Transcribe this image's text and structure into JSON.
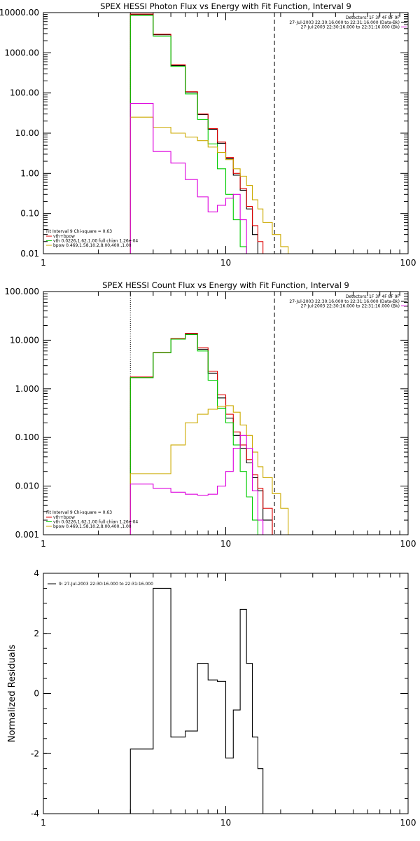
{
  "colors": {
    "data": "#000000",
    "total": "#dd0000",
    "vth": "#00cc00",
    "bpow": "#ccaa00",
    "bk": "#dd00dd",
    "vline": "#000000"
  },
  "chart_data": [
    {
      "type": "line",
      "title": "SPEX HESSI Photon Flux vs Energy with Fit Function, Interval 9",
      "xscale": "log",
      "yscale": "log",
      "xlim": [
        1,
        100
      ],
      "ylim": [
        0.01,
        10000
      ],
      "x_ticks": [
        1,
        10,
        100
      ],
      "x_tick_labels": [
        "1",
        "10",
        "100"
      ],
      "y_ticks": [
        0.01,
        0.1,
        1,
        10,
        100,
        1000,
        10000
      ],
      "y_tick_labels": [
        "0.01",
        "0.10",
        "1.00",
        "10.00",
        "100.00",
        "1000.00",
        "10000.00"
      ],
      "detectors_label": "Detectors: 1F 3F 4F 8F 9F",
      "time_lines": [
        {
          "text": "27-Jul-2003 22:30:16.000 to 22:31:16.000 (Data-Bk)",
          "color": "data"
        },
        {
          "text": "27-Jul-2003 22:30:16.000 to 22:31:16.000 (Bk)",
          "color": "bk"
        }
      ],
      "fit_header": "Fit Interval 9   Chi-square = 0.63",
      "fit_legend": [
        {
          "text": "vth+bpow",
          "color": "total"
        },
        {
          "text": "vth 0.0226,1.62,1.00  full chian 1.26e-04",
          "color": "vth"
        },
        {
          "text": "bpow 0.469,1.58,10.2,8.00,400.,1.00",
          "color": "bpow"
        }
      ],
      "dotted_line_x": 3.0,
      "dashed_line_x": 18.5,
      "edges": [
        3.0,
        4.0,
        5.0,
        6.0,
        7.0,
        8.0,
        9.0,
        10.0,
        11.0,
        12.0,
        13.0,
        14.0,
        15.0,
        16.0,
        18.0,
        20.0,
        22.0
      ],
      "series": [
        {
          "color": "data",
          "values": [
            9000,
            2800,
            480,
            105,
            29,
            12.5,
            5.6,
            2.3,
            0.9,
            0.38,
            0.13,
            0.03,
            0.01,
            null,
            null,
            null
          ]
        },
        {
          "color": "total",
          "values": [
            9200,
            2900,
            500,
            108,
            30,
            13,
            6,
            2.5,
            1.0,
            0.42,
            0.15,
            0.05,
            0.02,
            null,
            null,
            null
          ]
        },
        {
          "color": "vth",
          "values": [
            8500,
            2600,
            460,
            95,
            22,
            5.4,
            1.3,
            0.3,
            0.07,
            0.015,
            null,
            null,
            null,
            null,
            null,
            null
          ]
        },
        {
          "color": "bpow",
          "values": [
            25,
            14,
            10,
            8,
            6.5,
            4.5,
            3.3,
            2.2,
            1.3,
            0.85,
            0.5,
            0.22,
            0.13,
            0.06,
            0.03,
            0.015
          ]
        },
        {
          "color": "bk",
          "values": [
            55,
            3.5,
            1.8,
            0.7,
            0.26,
            0.11,
            0.16,
            0.24,
            0.3,
            0.07,
            0.01,
            null,
            null,
            null,
            null,
            null
          ]
        }
      ]
    },
    {
      "type": "line",
      "title": "SPEX HESSI Count Flux vs Energy with Fit Function, Interval 9",
      "xscale": "log",
      "yscale": "log",
      "xlim": [
        1,
        100
      ],
      "ylim": [
        0.001,
        100
      ],
      "x_ticks": [
        1,
        10,
        100
      ],
      "x_tick_labels": [
        "1",
        "10",
        "100"
      ],
      "y_ticks": [
        0.001,
        0.01,
        0.1,
        1,
        10,
        100
      ],
      "y_tick_labels": [
        "0.001",
        "0.010",
        "0.100",
        "1.000",
        "10.000",
        "100.000"
      ],
      "detectors_label": "Detectors: 1F 3F 4F 8F 9F",
      "time_lines": [
        {
          "text": "27-Jul-2003 22:30:16.000 to 22:31:16.000 (Data-Bk)",
          "color": "data"
        },
        {
          "text": "27-Jul-2003 22:30:16.000 to 22:31:16.000 (Bk)",
          "color": "bk"
        }
      ],
      "fit_header": "Fit Interval 9   Chi-square = 0.63",
      "fit_legend": [
        {
          "text": "vth+bpow",
          "color": "total"
        },
        {
          "text": "vth 0.0226,1.62,1.00  full chian 1.26e-04",
          "color": "vth"
        },
        {
          "text": "bpow 0.469,1.58,10.2,8.00,400.,1.00",
          "color": "bpow"
        }
      ],
      "dotted_line_x": 3.0,
      "dashed_line_x": 18.5,
      "edges": [
        3.0,
        4.0,
        5.0,
        6.0,
        7.0,
        8.0,
        9.0,
        10.0,
        11.0,
        12.0,
        13.0,
        14.0,
        15.0,
        16.0,
        18.0,
        20.0,
        22.0
      ],
      "series": [
        {
          "color": "data",
          "values": [
            1.7,
            5.5,
            10.5,
            13.5,
            6.5,
            2.1,
            0.65,
            0.25,
            0.11,
            0.06,
            0.03,
            0.015,
            0.008,
            0.002,
            null,
            null
          ]
        },
        {
          "color": "total",
          "values": [
            1.75,
            5.6,
            10.8,
            13.8,
            7.0,
            2.3,
            0.75,
            0.3,
            0.13,
            0.07,
            0.035,
            0.017,
            0.009,
            0.0035,
            null,
            null
          ]
        },
        {
          "color": "vth",
          "values": [
            1.7,
            5.5,
            10.5,
            13.0,
            6.0,
            1.5,
            0.4,
            0.2,
            0.07,
            0.02,
            0.006,
            0.002,
            0.001,
            null,
            null,
            null
          ]
        },
        {
          "color": "bpow",
          "values": [
            0.018,
            0.018,
            0.07,
            0.2,
            0.3,
            0.38,
            0.44,
            0.45,
            0.33,
            0.18,
            0.11,
            0.05,
            0.025,
            0.015,
            0.007,
            0.0035
          ]
        },
        {
          "color": "bk",
          "values": [
            0.011,
            0.009,
            0.0075,
            0.0068,
            0.0065,
            0.0068,
            0.01,
            0.02,
            0.06,
            0.11,
            0.06,
            0.008,
            0.002,
            null,
            null,
            null
          ]
        }
      ]
    },
    {
      "type": "line",
      "title": "",
      "xscale": "log",
      "yscale": "linear",
      "xlim": [
        1,
        100
      ],
      "ylim": [
        -4,
        4
      ],
      "x_ticks": [
        1,
        10,
        100
      ],
      "x_tick_labels": [
        "1",
        "10",
        "100"
      ],
      "y_ticks": [
        -4,
        -2,
        0,
        2,
        4
      ],
      "y_tick_labels": [
        "-4",
        "-2",
        "0",
        "2",
        "4"
      ],
      "ylabel": "Normalized Residuals",
      "legend_entry": "9: 27-Jul-2003 22:30:16.000 to 22:31:16.000",
      "edges": [
        3.0,
        4.0,
        5.0,
        6.0,
        7.0,
        8.0,
        9.0,
        10.0,
        11.0,
        12.0,
        13.0,
        14.0,
        15.0,
        16.0,
        18.0
      ],
      "series": [
        {
          "color": "data",
          "values": [
            -1.85,
            3.5,
            -1.45,
            -1.25,
            1.0,
            0.45,
            0.4,
            -2.15,
            -0.55,
            2.8,
            1.0,
            -1.45,
            -2.5,
            -4.0
          ]
        }
      ]
    }
  ]
}
